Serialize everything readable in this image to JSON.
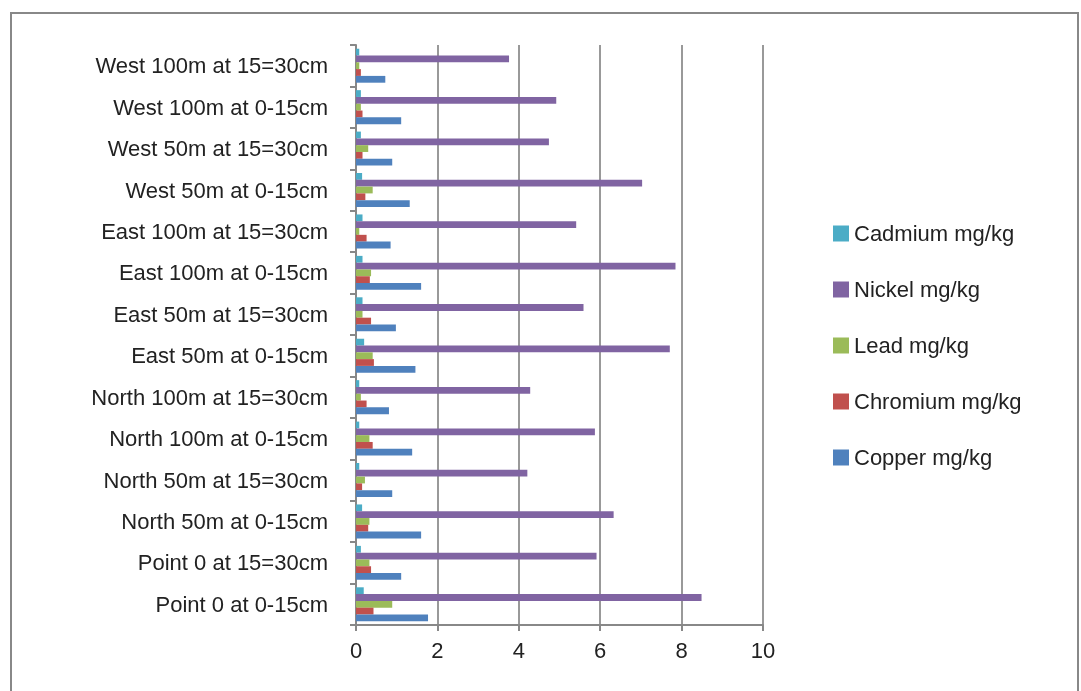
{
  "chart_data": {
    "type": "bar",
    "orientation": "horizontal",
    "categories": [
      "West 100m at 15=30cm",
      "West 100m at 0-15cm",
      "West 50m at 15=30cm",
      "West 50m at 0-15cm",
      "East 100m at 15=30cm",
      "East 100m at 0-15cm",
      "East 50m at 15=30cm",
      "East 50m at 0-15cm",
      "North 100m at 15=30cm",
      "North 100m at 0-15cm",
      "North 50m at 15=30cm",
      "North 50m at 0-15cm",
      "Point 0 at 15=30cm",
      "Point 0 at 0-15cm"
    ],
    "series": [
      {
        "name": "Cadmium mg/kg",
        "color": "#4bacc6",
        "values": [
          0.08,
          0.12,
          0.12,
          0.15,
          0.16,
          0.16,
          0.16,
          0.2,
          0.08,
          0.08,
          0.08,
          0.15,
          0.12,
          0.19
        ]
      },
      {
        "name": "Nickel mg/kg",
        "color": "#8064a2",
        "values": [
          3.76,
          4.92,
          4.74,
          7.03,
          5.41,
          7.85,
          5.59,
          7.71,
          4.28,
          5.87,
          4.21,
          6.33,
          5.91,
          8.49
        ]
      },
      {
        "name": "Lead mg/kg",
        "color": "#9bbb59",
        "values": [
          0.08,
          0.12,
          0.3,
          0.41,
          0.08,
          0.37,
          0.16,
          0.41,
          0.12,
          0.33,
          0.22,
          0.33,
          0.33,
          0.89
        ]
      },
      {
        "name": "Chromium mg/kg",
        "color": "#c0504d",
        "values": [
          0.12,
          0.16,
          0.16,
          0.23,
          0.26,
          0.34,
          0.37,
          0.44,
          0.26,
          0.41,
          0.15,
          0.3,
          0.37,
          0.43
        ]
      },
      {
        "name": "Copper mg/kg",
        "color": "#4f81bd",
        "values": [
          0.72,
          1.11,
          0.89,
          1.32,
          0.85,
          1.6,
          0.98,
          1.46,
          0.81,
          1.38,
          0.89,
          1.6,
          1.11,
          1.77
        ]
      }
    ],
    "xlim": [
      0,
      10
    ],
    "xticks": [
      0,
      2,
      4,
      6,
      8,
      10
    ],
    "grid": "x",
    "legend": "right"
  }
}
